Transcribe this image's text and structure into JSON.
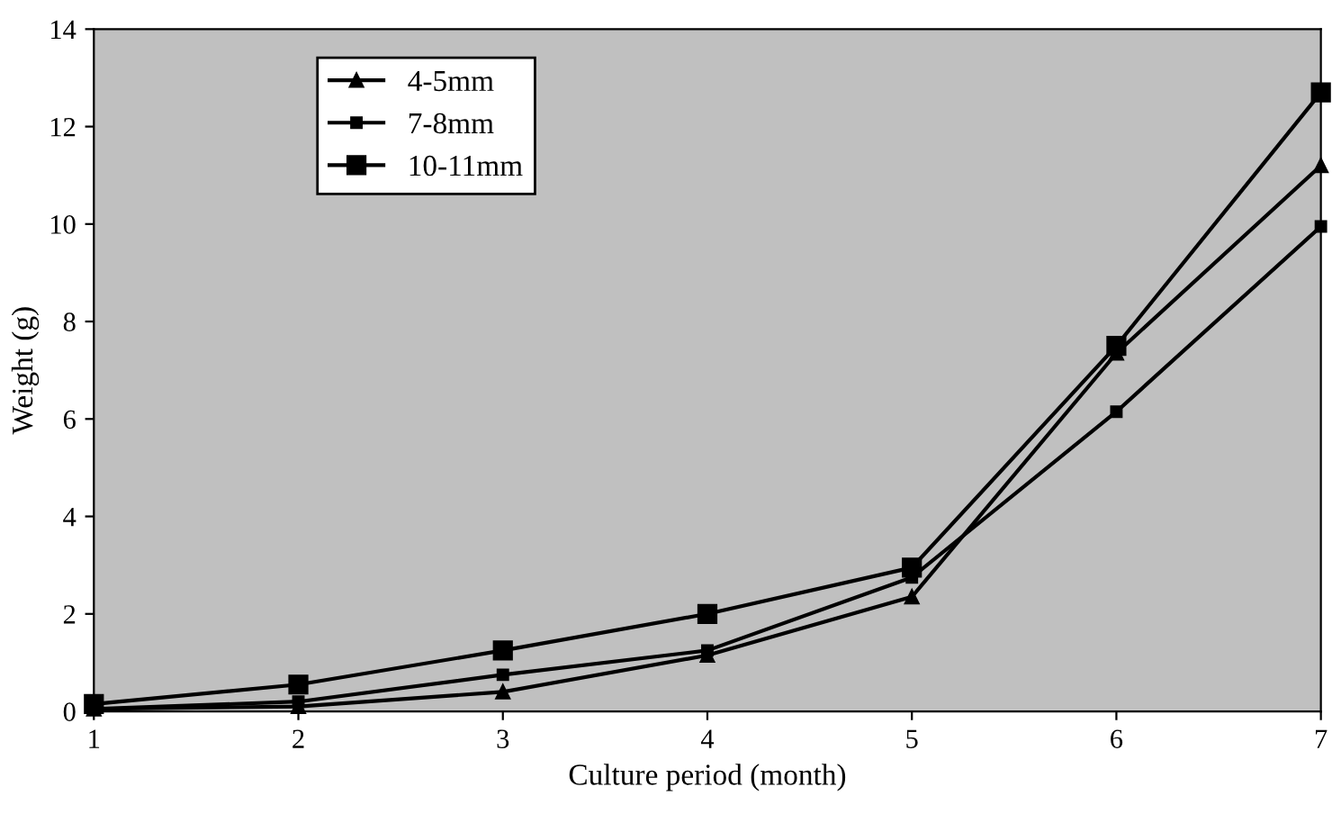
{
  "chart_data": {
    "type": "line",
    "xlabel": "Culture period (month)",
    "ylabel": "Weight (g)",
    "x": [
      1,
      2,
      3,
      4,
      5,
      6,
      7
    ],
    "series": [
      {
        "name": "4-5mm",
        "color": "#000000",
        "marker": "triangle",
        "values": [
          0.05,
          0.1,
          0.4,
          1.15,
          2.35,
          7.35,
          11.2
        ]
      },
      {
        "name": "7-8mm",
        "color": "#000000",
        "marker": "square",
        "values": [
          0.05,
          0.2,
          0.75,
          1.25,
          2.75,
          6.15,
          9.95
        ]
      },
      {
        "name": "10-11mm",
        "color": "#000000",
        "marker": "square",
        "values": [
          0.15,
          0.55,
          1.25,
          2.0,
          2.95,
          7.5,
          12.7
        ]
      }
    ],
    "xlim": [
      1,
      7
    ],
    "xticks": [
      1,
      2,
      3,
      4,
      5,
      6,
      7
    ],
    "ylim": [
      0,
      14
    ],
    "yticks": [
      0,
      2,
      4,
      6,
      8,
      10,
      12,
      14
    ],
    "grid": false,
    "legend": "top left",
    "line_style": "solid"
  }
}
